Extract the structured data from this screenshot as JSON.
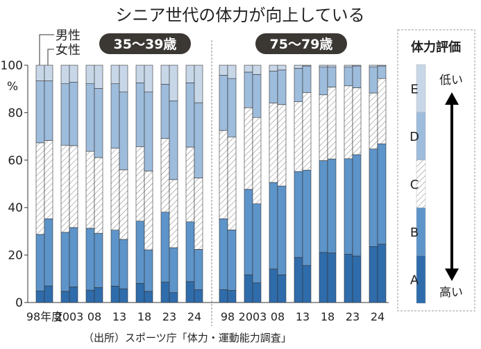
{
  "chart_data": {
    "type": "bar",
    "stacked": true,
    "title": "シニア世代の体力が向上している",
    "ylabel": "%",
    "ylim": [
      0,
      100
    ],
    "yticks": [
      0,
      20,
      40,
      60,
      80,
      100
    ],
    "categories": [
      "98年度",
      "2003",
      "08",
      "13",
      "18",
      "23",
      "24"
    ],
    "right_categories": [
      "98",
      "2003",
      "08",
      "13",
      "18",
      "23",
      "24"
    ],
    "sex_labels": {
      "male": "男性",
      "female": "女性"
    },
    "grades": [
      "A",
      "B",
      "C",
      "D",
      "E"
    ],
    "grade_colors": {
      "A": "#2f6cab",
      "B": "#5d94c9",
      "C": "hatched",
      "D": "#9ebcdc",
      "E": "#c8d7e8"
    },
    "groups": [
      {
        "label": "35〜39歳",
        "male": [
          [
            4.9,
            23.8,
            38.6,
            26.1,
            6.6
          ],
          [
            4.7,
            24.9,
            36.7,
            25.9,
            7.8
          ],
          [
            5.2,
            26.1,
            32.4,
            28.5,
            7.8
          ],
          [
            6.9,
            23.6,
            34.5,
            27.2,
            7.8
          ],
          [
            8.1,
            26.2,
            31.4,
            26.9,
            7.4
          ],
          [
            8.6,
            29.5,
            31.0,
            22.9,
            8.0
          ],
          [
            8.8,
            25.2,
            31.5,
            27.1,
            7.4
          ]
        ],
        "female": [
          [
            7.0,
            28.3,
            33.0,
            25.1,
            6.6
          ],
          [
            6.6,
            25.0,
            34.5,
            26.8,
            7.1
          ],
          [
            6.3,
            22.9,
            31.9,
            29.1,
            9.8
          ],
          [
            5.8,
            20.8,
            29.3,
            32.8,
            11.3
          ],
          [
            4.7,
            17.5,
            33.2,
            33.3,
            11.3
          ],
          [
            4.2,
            18.9,
            28.7,
            33.2,
            15.0
          ],
          [
            5.4,
            17.0,
            30.1,
            31.7,
            15.8
          ]
        ]
      },
      {
        "label": "75〜79歳",
        "male": [
          [
            5.4,
            29.9,
            37.2,
            23.3,
            4.2
          ],
          [
            11.7,
            36.0,
            34.4,
            15.0,
            2.9
          ],
          [
            14.1,
            36.5,
            33.5,
            13.4,
            2.5
          ],
          [
            19.0,
            36.2,
            29.4,
            14.1,
            1.3
          ],
          [
            21.1,
            38.7,
            27.7,
            11.7,
            0.8
          ],
          [
            20.4,
            40.2,
            30.7,
            7.9,
            0.8
          ],
          [
            23.6,
            41.1,
            23.6,
            10.9,
            0.8
          ]
        ],
        "female": [
          [
            5.1,
            25.5,
            39.2,
            24.6,
            5.6
          ],
          [
            8.3,
            33.3,
            36.4,
            18.1,
            3.9
          ],
          [
            11.7,
            37.4,
            34.3,
            14.6,
            2.0
          ],
          [
            15.6,
            40.2,
            32.7,
            11.2,
            0.3
          ],
          [
            20.9,
            39.6,
            30.3,
            8.4,
            0.8
          ],
          [
            19.6,
            42.7,
            28.2,
            9.2,
            0.3
          ],
          [
            24.6,
            42.3,
            27.5,
            5.3,
            0.3
          ]
        ]
      }
    ],
    "legend": {
      "title": "体力評価",
      "low_label": "低い",
      "high_label": "高い",
      "placement": "right"
    },
    "source": "（出所）スポーツ庁「体力・運動能力調査」"
  }
}
